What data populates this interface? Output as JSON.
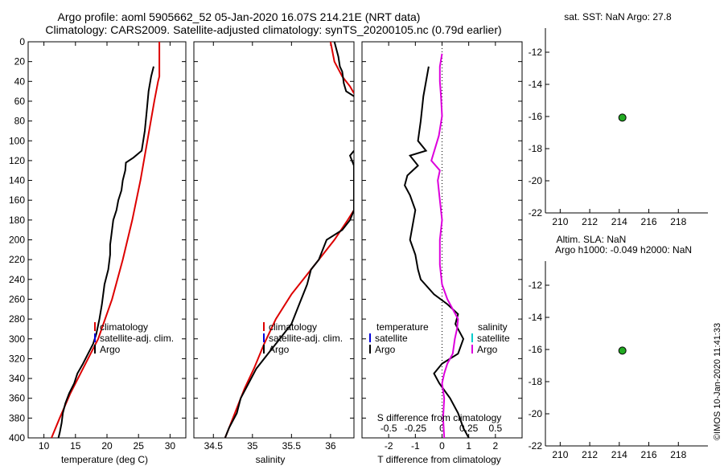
{
  "title": {
    "line1": "Argo profile: aoml 5905662_52 05-Jan-2020 16.07S 214.21E (NRT data)",
    "line2": "Climatology: CARS2009. Satellite-adjusted climatology: synTS_20200105.nc (0.79d earlier)"
  },
  "timestamp": "©IMOS 10-Jan-2020 11:41:33",
  "colors": {
    "climatology": "#dd0000",
    "satellite": "#0000dd",
    "argo": "#000000",
    "salinity_diff": "#dd00dd",
    "marker": "#22aa22"
  },
  "chart_data": [
    {
      "id": "temperature",
      "type": "line",
      "xlabel": "temperature (deg C)",
      "ylabel": "",
      "xlim": [
        7.5,
        32.5
      ],
      "ylim": [
        0,
        400
      ],
      "y_reversed": true,
      "xticks": [
        10,
        15,
        20,
        25,
        30
      ],
      "yticks": [
        0,
        20,
        40,
        60,
        80,
        100,
        120,
        140,
        160,
        180,
        200,
        220,
        240,
        260,
        280,
        300,
        320,
        340,
        360,
        380,
        400
      ],
      "legend": [
        "climatology",
        "satellite-adj. clim.",
        "Argo"
      ],
      "series": [
        {
          "name": "climatology",
          "color": "#dd0000",
          "points": [
            [
              28.3,
              0
            ],
            [
              28.3,
              20
            ],
            [
              28.3,
              35
            ],
            [
              28.1,
              40
            ],
            [
              27.5,
              60
            ],
            [
              26.4,
              100
            ],
            [
              25.3,
              140
            ],
            [
              24.0,
              180
            ],
            [
              22.5,
              220
            ],
            [
              20.8,
              260
            ],
            [
              18.6,
              300
            ],
            [
              16.2,
              330
            ],
            [
              14.2,
              355
            ],
            [
              12.5,
              380
            ],
            [
              11.2,
              400
            ]
          ]
        },
        {
          "name": "Argo",
          "color": "#000000",
          "points": [
            [
              27.4,
              25
            ],
            [
              27.0,
              35
            ],
            [
              26.6,
              50
            ],
            [
              26.3,
              70
            ],
            [
              26.0,
              90
            ],
            [
              25.5,
              110
            ],
            [
              24.2,
              117
            ],
            [
              23.0,
              122
            ],
            [
              22.9,
              130
            ],
            [
              22.5,
              140
            ],
            [
              22.3,
              150
            ],
            [
              21.8,
              160
            ],
            [
              21.5,
              170
            ],
            [
              21.0,
              180
            ],
            [
              20.7,
              195
            ],
            [
              20.5,
              205
            ],
            [
              20.5,
              215
            ],
            [
              20.2,
              230
            ],
            [
              19.6,
              245
            ],
            [
              19.4,
              255
            ],
            [
              19.2,
              265
            ],
            [
              18.8,
              280
            ],
            [
              18.3,
              295
            ],
            [
              17.8,
              305
            ],
            [
              17.0,
              315
            ],
            [
              16.2,
              325
            ],
            [
              15.3,
              335
            ],
            [
              14.8,
              345
            ],
            [
              14.0,
              355
            ],
            [
              13.4,
              365
            ],
            [
              13.0,
              375
            ],
            [
              12.8,
              385
            ],
            [
              12.5,
              395
            ],
            [
              12.3,
              400
            ]
          ]
        }
      ]
    },
    {
      "id": "salinity",
      "type": "line",
      "xlabel": "salinity",
      "ylabel": "",
      "xlim": [
        34.25,
        36.3
      ],
      "ylim": [
        0,
        400
      ],
      "y_reversed": true,
      "xticks": [
        34.5,
        35,
        35.5,
        36
      ],
      "legend": [
        "climatology",
        "satellite-adj. clim.",
        "Argo"
      ],
      "series": [
        {
          "name": "climatology",
          "color": "#dd0000",
          "points": [
            [
              36.0,
              0
            ],
            [
              36.05,
              20
            ],
            [
              36.15,
              35
            ],
            [
              36.25,
              45
            ],
            [
              36.3,
              52
            ]
          ]
        },
        {
          "name": "climatology",
          "color": "#dd0000",
          "points": [
            [
              36.3,
              170
            ],
            [
              36.22,
              180
            ],
            [
              36.05,
              200
            ],
            [
              35.9,
              215
            ],
            [
              35.7,
              235
            ],
            [
              35.5,
              255
            ],
            [
              35.3,
              280
            ],
            [
              35.15,
              305
            ],
            [
              35.02,
              330
            ],
            [
              34.9,
              350
            ],
            [
              34.8,
              370
            ],
            [
              34.7,
              390
            ],
            [
              34.65,
              400
            ]
          ]
        },
        {
          "name": "Argo",
          "color": "#000000",
          "points": [
            [
              36.05,
              0
            ],
            [
              36.1,
              15
            ],
            [
              36.12,
              25
            ],
            [
              36.15,
              30
            ],
            [
              36.17,
              42
            ],
            [
              36.2,
              50
            ],
            [
              36.3,
              55
            ]
          ]
        },
        {
          "name": "Argo",
          "color": "#000000",
          "points": [
            [
              36.3,
              110
            ],
            [
              36.25,
              115
            ],
            [
              36.3,
              125
            ],
            [
              36.3,
              140
            ],
            [
              36.3,
              170
            ],
            [
              36.25,
              180
            ],
            [
              36.15,
              190
            ],
            [
              35.95,
              200
            ],
            [
              35.85,
              220
            ],
            [
              35.75,
              230
            ],
            [
              35.7,
              245
            ],
            [
              35.6,
              265
            ],
            [
              35.5,
              285
            ],
            [
              35.35,
              300
            ],
            [
              35.2,
              315
            ],
            [
              35.05,
              330
            ],
            [
              34.95,
              345
            ],
            [
              34.85,
              360
            ],
            [
              34.8,
              375
            ],
            [
              34.7,
              390
            ],
            [
              34.65,
              400
            ]
          ]
        }
      ]
    },
    {
      "id": "difference",
      "type": "line",
      "xlabel": "T difference from climatology",
      "xlabel2": "S difference from climatology",
      "xlim": [
        -3,
        3
      ],
      "ylim": [
        0,
        400
      ],
      "y_reversed": true,
      "xticks": [
        -2,
        -1,
        0,
        1,
        2
      ],
      "xticks_top": [
        -0.5,
        -0.25,
        0,
        0.25,
        0.5
      ],
      "legend_temperature": {
        "title": "temperature",
        "items": [
          "satellite",
          "Argo"
        ]
      },
      "legend_salinity": {
        "title": "salinity",
        "items": [
          "satellite",
          "Argo"
        ]
      },
      "series": [
        {
          "name": "T difference (Argo)",
          "color": "#000000",
          "points": [
            [
              -0.5,
              25
            ],
            [
              -0.6,
              40
            ],
            [
              -0.7,
              55
            ],
            [
              -0.8,
              80
            ],
            [
              -0.9,
              100
            ],
            [
              -0.6,
              110
            ],
            [
              -1.2,
              115
            ],
            [
              -0.9,
              125
            ],
            [
              -1.3,
              135
            ],
            [
              -1.4,
              145
            ],
            [
              -1.2,
              155
            ],
            [
              -1.0,
              170
            ],
            [
              -1.1,
              185
            ],
            [
              -1.2,
              200
            ],
            [
              -1.0,
              215
            ],
            [
              -0.9,
              230
            ],
            [
              -0.8,
              240
            ],
            [
              -0.3,
              255
            ],
            [
              0.2,
              265
            ],
            [
              0.6,
              275
            ],
            [
              0.5,
              285
            ],
            [
              0.8,
              300
            ],
            [
              0.6,
              315
            ],
            [
              0.0,
              325
            ],
            [
              -0.3,
              335
            ],
            [
              -0.1,
              345
            ],
            [
              0.3,
              360
            ],
            [
              0.6,
              375
            ],
            [
              0.8,
              390
            ],
            [
              1.0,
              400
            ]
          ]
        },
        {
          "name": "S difference (Argo)",
          "color": "#dd00dd",
          "points": [
            [
              0.0,
              12
            ],
            [
              -0.02,
              25
            ],
            [
              -0.02,
              40
            ],
            [
              -0.01,
              55
            ],
            [
              0.0,
              75
            ],
            [
              -0.03,
              95
            ],
            [
              -0.1,
              120
            ],
            [
              -0.02,
              130
            ],
            [
              -0.04,
              140
            ],
            [
              -0.02,
              160
            ],
            [
              0.0,
              180
            ],
            [
              -0.02,
              200
            ],
            [
              -0.02,
              225
            ],
            [
              0.0,
              245
            ],
            [
              0.05,
              260
            ],
            [
              0.1,
              270
            ],
            [
              0.15,
              280
            ],
            [
              0.14,
              290
            ],
            [
              0.12,
              300
            ],
            [
              0.1,
              315
            ],
            [
              0.05,
              325
            ],
            [
              0.02,
              335
            ],
            [
              0.0,
              345
            ],
            [
              0.02,
              360
            ],
            [
              0.01,
              380
            ],
            [
              0.02,
              400
            ]
          ]
        }
      ]
    },
    {
      "id": "sst_map",
      "type": "scatter",
      "title": "sat. SST: NaN Argo: 27.8",
      "xlim": [
        209,
        220
      ],
      "ylim": [
        -22,
        -10.5
      ],
      "xticks": [
        210,
        212,
        214,
        216,
        218
      ],
      "yticks": [
        -12,
        -14,
        -16,
        -18,
        -20,
        -22
      ],
      "points": [
        [
          214.21,
          -16.07
        ]
      ]
    },
    {
      "id": "sla_map",
      "type": "scatter",
      "title": "Altim. SLA: NaN",
      "title2": "Argo h1000: -0.049 h2000: NaN",
      "xlim": [
        209,
        220
      ],
      "ylim": [
        -22,
        -10.5
      ],
      "xticks": [
        210,
        212,
        214,
        216,
        218
      ],
      "yticks": [
        -12,
        -14,
        -16,
        -18,
        -20,
        -22
      ],
      "points": [
        [
          214.21,
          -16.07
        ]
      ]
    }
  ]
}
